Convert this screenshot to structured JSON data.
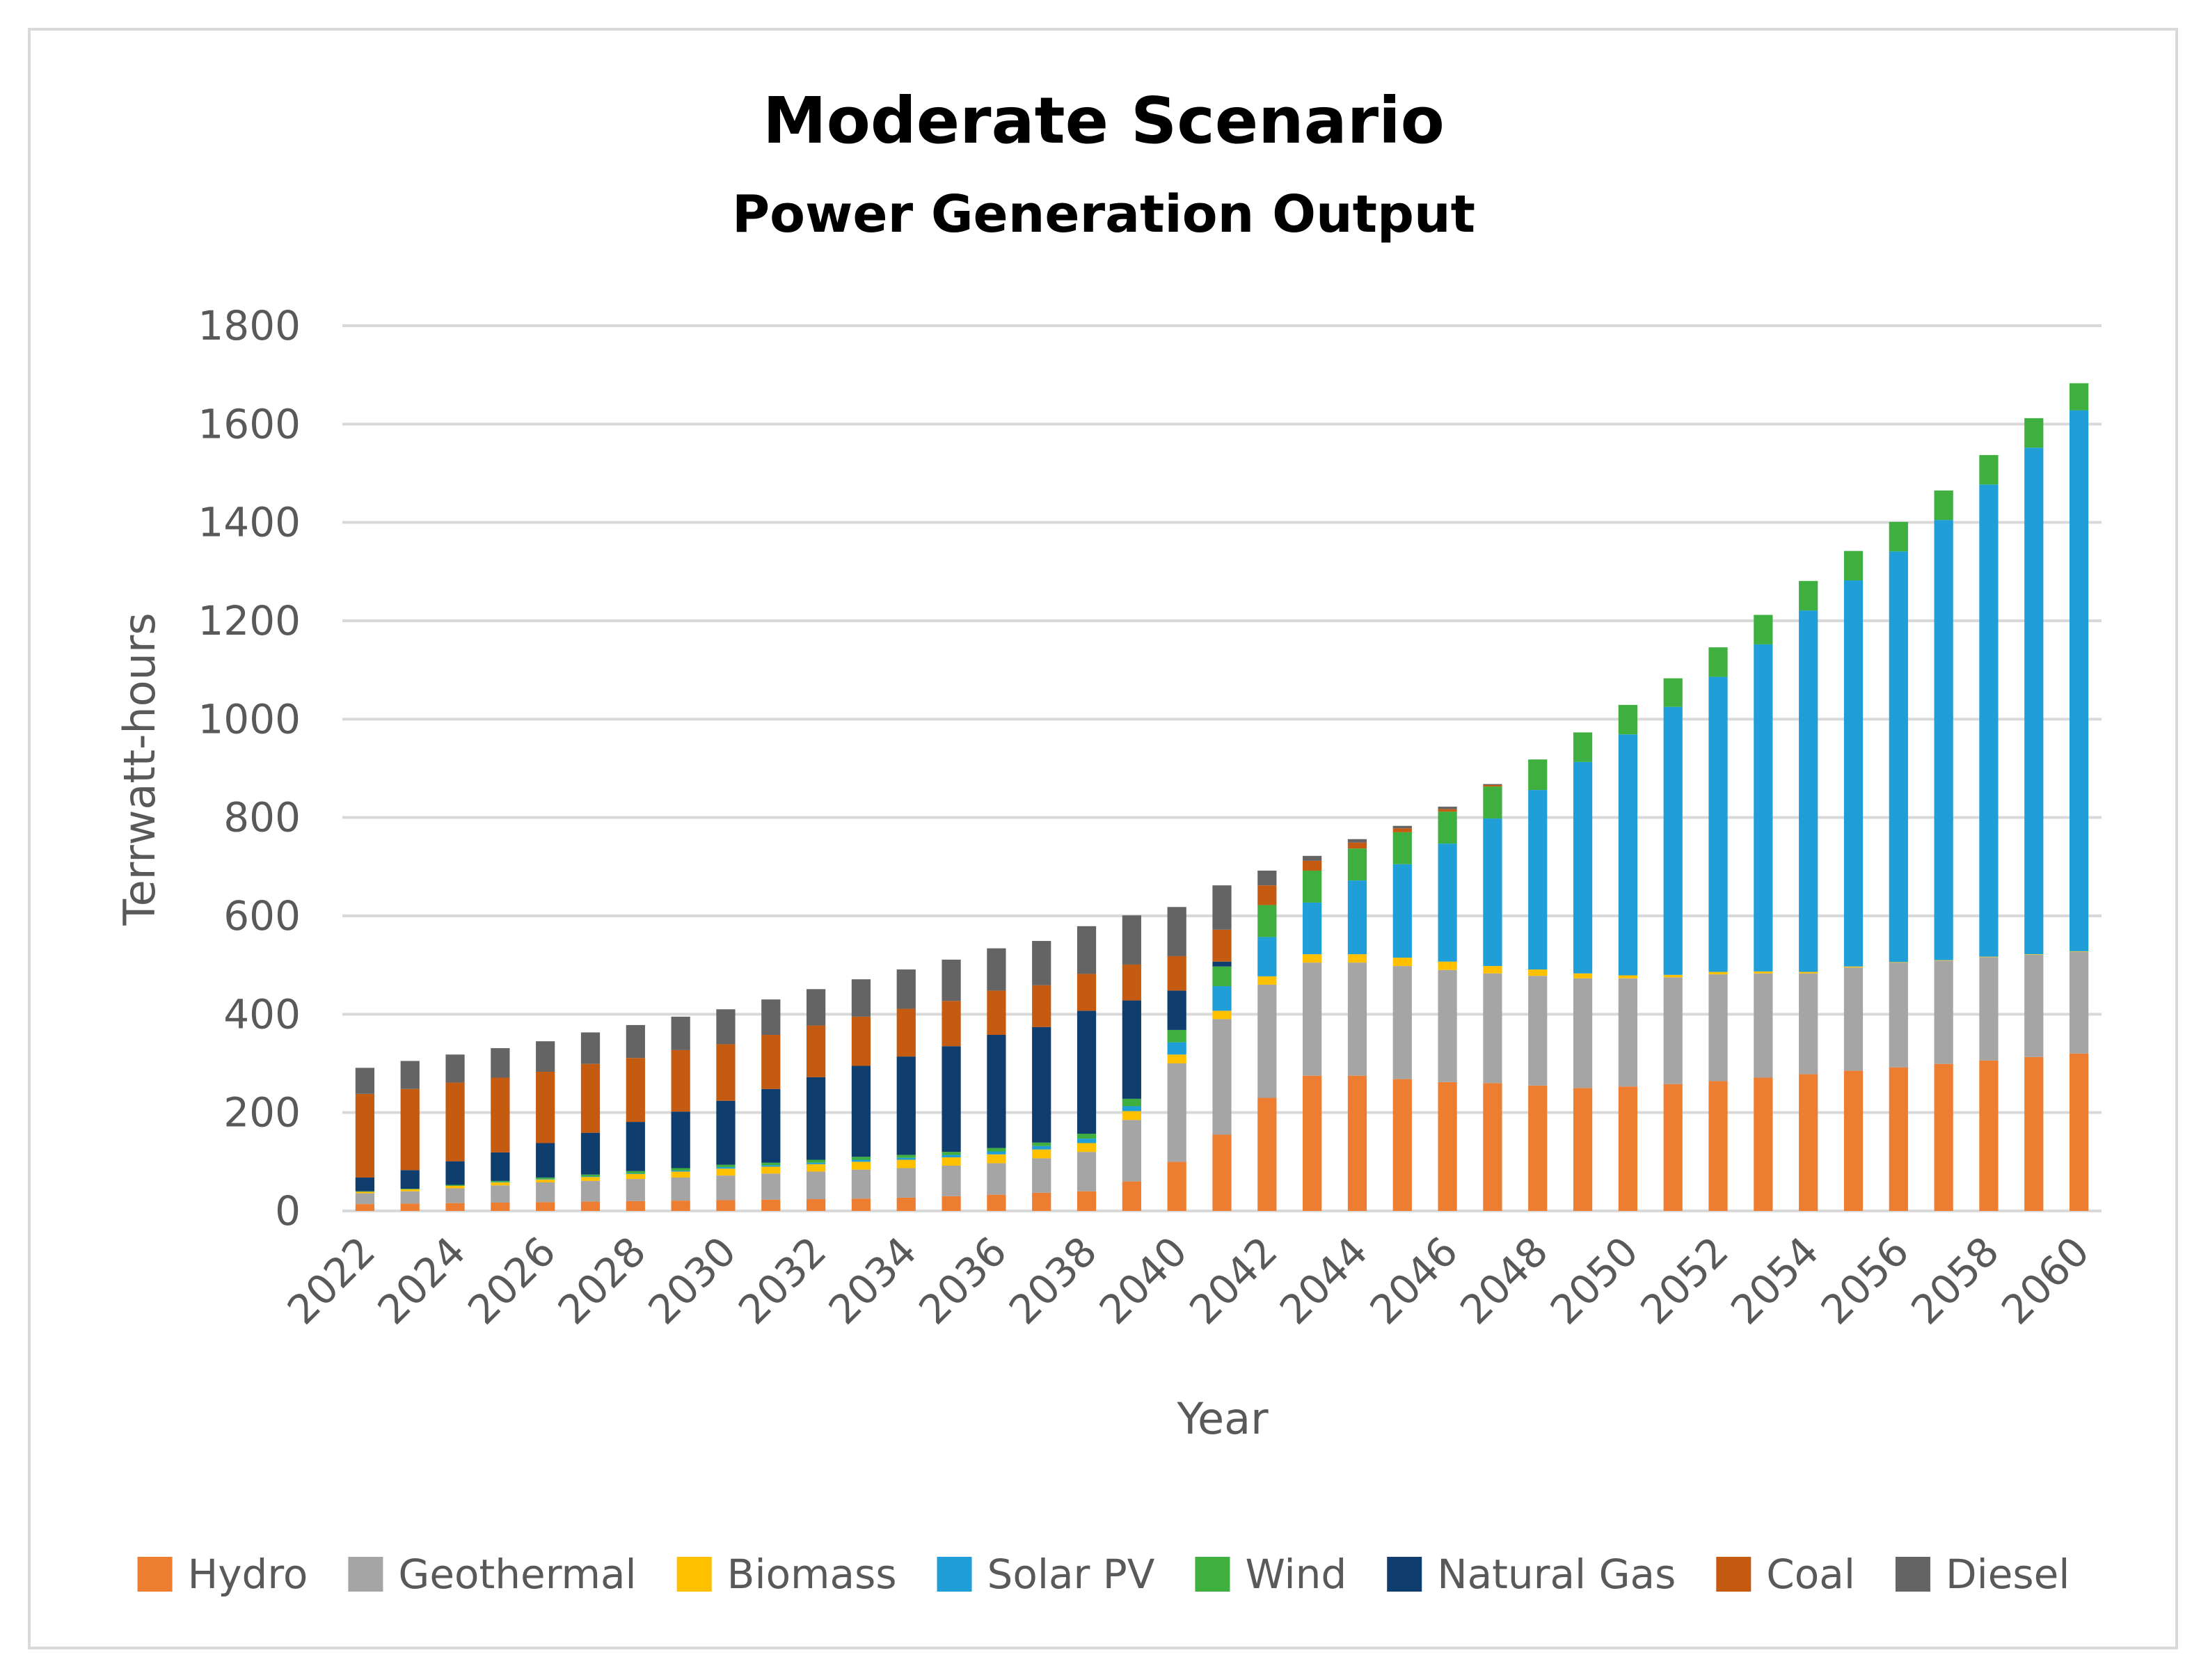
{
  "chart_data": {
    "type": "bar",
    "stacked": true,
    "title": "Moderate Scenario",
    "subtitle": "Power Generation Output",
    "xlabel": "Year",
    "ylabel": "Terrwatt-hours",
    "ylim": [
      0,
      1800
    ],
    "yticks": [
      0,
      200,
      400,
      600,
      800,
      1000,
      1200,
      1400,
      1600,
      1800
    ],
    "grid": true,
    "legend_position": "bottom",
    "categories": [
      "2022",
      "2023",
      "2024",
      "2025",
      "2026",
      "2027",
      "2028",
      "2029",
      "2030",
      "2031",
      "2032",
      "2033",
      "2034",
      "2035",
      "2036",
      "2037",
      "2038",
      "2039",
      "2040",
      "2041",
      "2042",
      "2043",
      "2044",
      "2045",
      "2046",
      "2047",
      "2048",
      "2049",
      "2050",
      "2051",
      "2052",
      "2053",
      "2054",
      "2055",
      "2056",
      "2057",
      "2058",
      "2059",
      "2060"
    ],
    "xtick_labels": [
      "2022",
      "",
      "2024",
      "",
      "2026",
      "",
      "2028",
      "",
      "2030",
      "",
      "2032",
      "",
      "2034",
      "",
      "2036",
      "",
      "2038",
      "",
      "2040",
      "",
      "2042",
      "",
      "2044",
      "",
      "2046",
      "",
      "2048",
      "",
      "2050",
      "",
      "2052",
      "",
      "2054",
      "",
      "2056",
      "",
      "2058",
      "",
      "2060"
    ],
    "series": [
      {
        "name": "Hydro",
        "color": "#ED7D31",
        "values": [
          14,
          15,
          16,
          17,
          18,
          19,
          20,
          21,
          22,
          23,
          24,
          25,
          27,
          30,
          33,
          37,
          40,
          60,
          100,
          155,
          230,
          275,
          275,
          268,
          262,
          260,
          255,
          250,
          253,
          258,
          264,
          271,
          278,
          285,
          292,
          299,
          306,
          313,
          320
        ]
      },
      {
        "name": "Geothermal",
        "color": "#A5A5A5",
        "values": [
          22,
          25,
          30,
          35,
          40,
          42,
          45,
          47,
          50,
          53,
          56,
          59,
          60,
          62,
          64,
          70,
          80,
          125,
          200,
          235,
          230,
          230,
          230,
          230,
          228,
          223,
          223,
          223,
          220,
          217,
          217,
          212,
          205,
          210,
          213,
          210,
          210,
          208,
          207
        ]
      },
      {
        "name": "Biomass",
        "color": "#FFC000",
        "values": [
          3,
          4,
          5,
          6,
          6,
          8,
          10,
          12,
          14,
          14,
          15,
          16,
          17,
          17,
          18,
          18,
          18,
          18,
          18,
          17,
          17,
          17,
          17,
          17,
          17,
          15,
          13,
          10,
          6,
          5,
          5,
          4,
          3,
          2,
          1,
          1,
          1,
          1,
          1
        ]
      },
      {
        "name": "Solar PV",
        "color": "#1F9ED8",
        "values": [
          0,
          0,
          0,
          1,
          1,
          1,
          1,
          2,
          3,
          3,
          3,
          4,
          4,
          5,
          6,
          7,
          9,
          10,
          25,
          50,
          80,
          105,
          150,
          190,
          240,
          300,
          365,
          430,
          490,
          545,
          600,
          665,
          735,
          785,
          835,
          895,
          960,
          1030,
          1100
        ]
      },
      {
        "name": "Wind",
        "color": "#3FAF3F",
        "values": [
          1,
          1,
          2,
          2,
          3,
          4,
          5,
          5,
          5,
          5,
          6,
          6,
          6,
          6,
          7,
          7,
          10,
          15,
          25,
          40,
          65,
          65,
          65,
          65,
          65,
          65,
          62,
          60,
          60,
          58,
          60,
          60,
          60,
          60,
          60,
          60,
          60,
          60,
          55
        ]
      },
      {
        "name": "Natural Gas",
        "color": "#0E3D6E",
        "values": [
          28,
          38,
          48,
          58,
          70,
          85,
          100,
          115,
          130,
          150,
          168,
          185,
          200,
          215,
          230,
          235,
          250,
          200,
          80,
          10,
          0,
          0,
          0,
          0,
          0,
          0,
          0,
          0,
          0,
          0,
          0,
          0,
          0,
          0,
          0,
          0,
          0,
          0,
          0
        ]
      },
      {
        "name": "Coal",
        "color": "#C55A11",
        "values": [
          170,
          165,
          160,
          152,
          145,
          140,
          130,
          125,
          115,
          110,
          105,
          100,
          97,
          92,
          90,
          85,
          75,
          73,
          70,
          65,
          40,
          20,
          12,
          8,
          5,
          3,
          0,
          0,
          0,
          0,
          0,
          0,
          0,
          0,
          0,
          0,
          0,
          0,
          0
        ]
      },
      {
        "name": "Diesel",
        "color": "#646464",
        "values": [
          53,
          57,
          57,
          60,
          62,
          64,
          67,
          68,
          71,
          72,
          74,
          76,
          80,
          84,
          86,
          90,
          97,
          100,
          100,
          90,
          30,
          10,
          7,
          5,
          5,
          2,
          0,
          0,
          0,
          0,
          0,
          0,
          0,
          0,
          0,
          0,
          0,
          0,
          0
        ]
      }
    ]
  }
}
